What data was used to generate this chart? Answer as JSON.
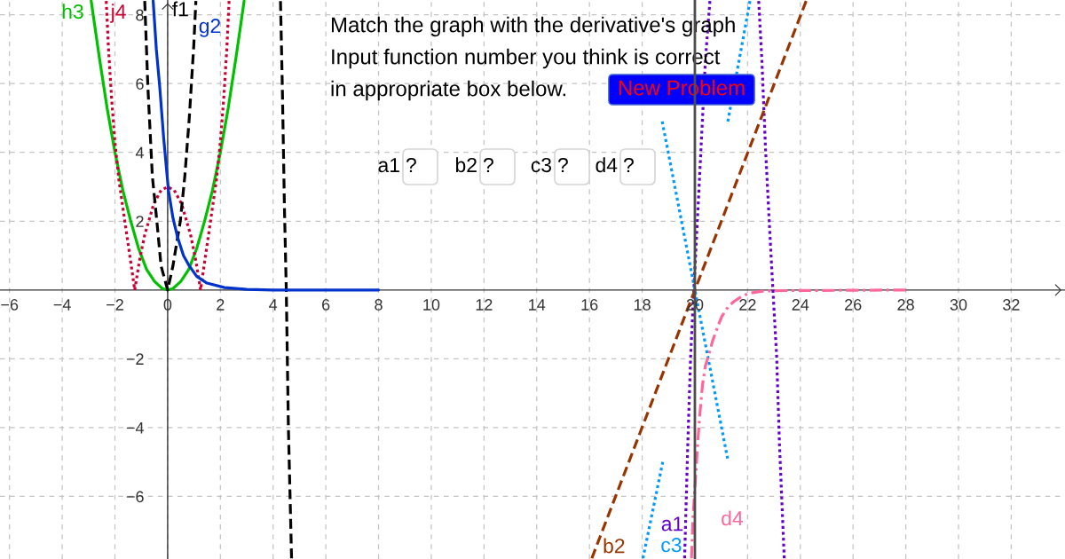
{
  "chart_data": {
    "type": "line",
    "xlim": [
      -6.36,
      34.04
    ],
    "ylim": [
      -7.82,
      8.43
    ],
    "xticks": [
      {
        "value": -6,
        "label": "−6"
      },
      {
        "value": -4,
        "label": "−4"
      },
      {
        "value": -2,
        "label": "−2"
      },
      0,
      2,
      4,
      6,
      8,
      10,
      12,
      14,
      16,
      18,
      20,
      22,
      24,
      26,
      28,
      30,
      32
    ],
    "yticks": [
      {
        "value": -6,
        "label": "−6"
      },
      {
        "value": -4,
        "label": "−4"
      },
      {
        "value": -2,
        "label": "−2"
      },
      2,
      4,
      6,
      8
    ],
    "grid": true,
    "series": [
      {
        "name": "h3",
        "color": "#00c000",
        "line_style": "solid",
        "x": [
          -2.9,
          -2.6,
          -2.3,
          -2.0,
          -1.7,
          -1.4,
          -1.1,
          -0.8,
          -0.5,
          -0.2,
          0,
          0.2,
          0.5,
          0.8,
          1.1,
          1.4,
          1.7,
          2.0,
          2.3,
          2.6,
          2.9
        ],
        "values": [
          8.4,
          6.8,
          5.3,
          4.0,
          2.9,
          2.0,
          1.2,
          0.6,
          0.25,
          0.04,
          0,
          0.04,
          0.25,
          0.6,
          1.2,
          2.0,
          2.9,
          4.0,
          5.3,
          6.8,
          8.4
        ]
      },
      {
        "name": "j4",
        "color": "#cc0033",
        "line_style": "dotted",
        "x": [
          -2.33,
          -2.25,
          -2.13,
          -2.0,
          -1.85,
          -1.7,
          -1.55,
          -1.38,
          -1.25,
          -1.08,
          -0.98,
          -0.87,
          -0.53,
          -0.25,
          0,
          0.25,
          0.53,
          0.87,
          0.98,
          1.08,
          1.25,
          1.38,
          1.55,
          1.7,
          1.85,
          2.0,
          2.13,
          2.25,
          2.33
        ],
        "values": [
          8.4,
          7.1,
          5.6,
          4.3,
          3.2,
          2.4,
          1.6,
          0.7,
          0,
          0.8,
          1.2,
          1.6,
          2.5,
          2.9,
          3.0,
          2.9,
          2.5,
          1.6,
          1.2,
          0.8,
          0,
          0.7,
          1.6,
          2.4,
          3.2,
          4.3,
          5.6,
          7.1,
          8.4
        ]
      },
      {
        "name": "f1",
        "color": "#000000",
        "line_style": "dashed",
        "x": [
          -0.87,
          -0.75,
          -0.58,
          -0.41,
          -0.25,
          0,
          0.2,
          0.48,
          0.65,
          0.82,
          0.99,
          1.07,
          2.7,
          4.28,
          4.35,
          4.43,
          4.5,
          4.52,
          4.58,
          4.7
        ],
        "values": [
          8.4,
          5.9,
          3.3,
          2.0,
          0.7,
          0,
          0.7,
          2.0,
          3.3,
          5.0,
          7.1,
          8.4,
          null,
          8.4,
          5.9,
          2.4,
          0,
          -1.0,
          -4.0,
          -7.8
        ]
      },
      {
        "name": "g2",
        "color": "#0033cc",
        "line_style": "solid",
        "x": [
          -0.55,
          -0.43,
          -0.3,
          -0.15,
          0.03,
          0.2,
          0.37,
          0.6,
          0.82,
          1.1,
          1.49,
          2.16,
          3.0,
          4.0,
          8.0
        ],
        "values": [
          8.4,
          7.0,
          5.9,
          4.4,
          2.9,
          2.1,
          1.55,
          1.0,
          0.7,
          0.4,
          0.2,
          0.07,
          0.02,
          0,
          0
        ]
      },
      {
        "name": "a1",
        "color": "#6600cc",
        "line_style": "dotted",
        "x": [
          19.61,
          19.73,
          19.84,
          19.96,
          20.12,
          20.29,
          20.4,
          20.57,
          21.5,
          22.42,
          22.54,
          22.68,
          22.82,
          22.96,
          23.1,
          23.21,
          23.39
        ],
        "values": [
          -7.8,
          -4.5,
          -1.9,
          0,
          2.4,
          5.0,
          6.7,
          8.4,
          null,
          8.4,
          6.7,
          4.1,
          2.0,
          0,
          -1.9,
          -4.5,
          -7.8
        ]
      },
      {
        "name": "b2",
        "color": "#993300",
        "line_style": "dashed",
        "x": [
          16.09,
          20,
          24.22
        ],
        "values": [
          -7.8,
          0,
          8.4
        ]
      },
      {
        "name": "c3",
        "color": "#0099ff",
        "line_style": "dotted",
        "x": [
          18.03,
          18.78,
          18.77,
          18.76,
          20,
          21.24,
          21.245,
          21.25,
          22.09
        ],
        "values": [
          -7.8,
          -5.0,
          null,
          4.9,
          0,
          -4.9,
          null,
          4.9,
          8.4
        ]
      },
      {
        "name": "d4",
        "color": "#ff6699",
        "line_style": "dashdot",
        "x": [
          19.87,
          19.93,
          20.03,
          20.12,
          20.2,
          20.29,
          20.4,
          20.52,
          20.68,
          20.85,
          21.02,
          21.25,
          21.47,
          21.75,
          22.03,
          22.5,
          23.0,
          28.0
        ],
        "values": [
          -7.8,
          -6.6,
          -5.4,
          -4.3,
          -3.5,
          -2.75,
          -2.2,
          -1.9,
          -1.46,
          -1.1,
          -0.77,
          -0.5,
          -0.34,
          -0.2,
          -0.1,
          -0.04,
          -0.02,
          0
        ]
      }
    ],
    "ref_lines": [
      {
        "axis": "x",
        "value": 20,
        "color": "#4d4d4d"
      }
    ],
    "annotations": [
      "Match the graph with the derivative's graph",
      "Input function number you think is correct",
      "in appropriate box below.",
      "New Problem",
      "a1",
      "?",
      "b2",
      "?",
      "c3",
      "?",
      "d4",
      "?"
    ]
  }
}
